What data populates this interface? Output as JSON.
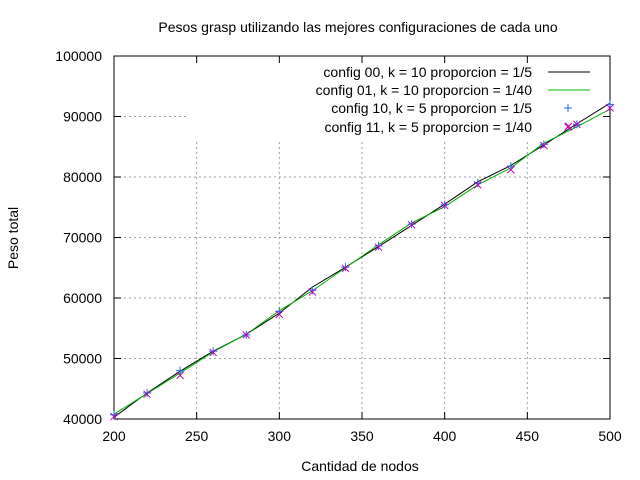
{
  "chart_data": {
    "type": "line",
    "title": "Pesos grasp utilizando las mejores configuraciones de cada uno",
    "xlabel": "Cantidad de nodos",
    "ylabel": "Peso total",
    "xlim": [
      200,
      500
    ],
    "ylim": [
      40000,
      100000
    ],
    "xticks": [
      200,
      250,
      300,
      350,
      400,
      450,
      500
    ],
    "yticks": [
      40000,
      50000,
      60000,
      70000,
      80000,
      90000,
      100000
    ],
    "grid": true,
    "legend_position": "top-right",
    "series": [
      {
        "name": "config 00, k = 10 proporcion = 1/5",
        "style": "line",
        "color": "#000000",
        "x": [
          200,
          220,
          240,
          260,
          280,
          300,
          320,
          340,
          360,
          380,
          400,
          420,
          440,
          460,
          480,
          500
        ],
        "y": [
          40300,
          44300,
          47900,
          51200,
          54000,
          57500,
          61800,
          65100,
          68500,
          72000,
          75500,
          79200,
          81900,
          85300,
          88800,
          92200
        ]
      },
      {
        "name": "config 01, k = 10 proporcion = 1/40",
        "style": "line",
        "color": "#00b000",
        "x": [
          200,
          220,
          240,
          260,
          280,
          300,
          320,
          340,
          360,
          380,
          400,
          420,
          440,
          460,
          480,
          500
        ],
        "y": [
          40800,
          44200,
          47600,
          51100,
          54000,
          57900,
          61200,
          65000,
          68800,
          72400,
          75100,
          78700,
          81500,
          85600,
          88300,
          91200
        ]
      },
      {
        "name": "config  10, k = 5 proporcion = 1/5",
        "style": "plus",
        "color": "#1e6ee6",
        "x": [
          200,
          220,
          240,
          260,
          280,
          300,
          320,
          340,
          360,
          380,
          400,
          420,
          440,
          460,
          480,
          500
        ],
        "y": [
          40700,
          44300,
          48000,
          51200,
          53900,
          57800,
          61300,
          65100,
          68600,
          72200,
          75400,
          79000,
          81800,
          85400,
          88700,
          92000
        ]
      },
      {
        "name": "config 11, k = 5 proporcion = 1/40",
        "style": "cross",
        "color": "#c000c0",
        "x": [
          200,
          220,
          240,
          260,
          280,
          300,
          320,
          340,
          360,
          380,
          400,
          420,
          440,
          460,
          475,
          480,
          500
        ],
        "y": [
          40400,
          44100,
          47200,
          51000,
          53900,
          57300,
          61000,
          64900,
          68400,
          72100,
          75300,
          78700,
          81200,
          85200,
          88400,
          88700,
          91400
        ]
      }
    ]
  }
}
